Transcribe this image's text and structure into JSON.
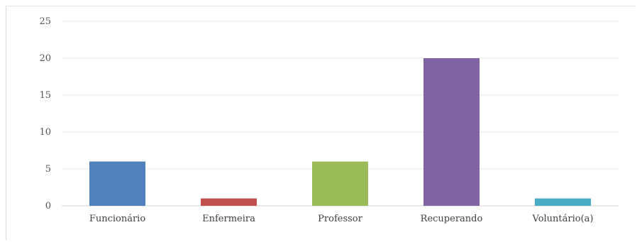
{
  "chart_data": {
    "type": "bar",
    "categories": [
      "Funcionário",
      "Enfermeira",
      "Professor",
      "Recuperando",
      "Voluntário(a)"
    ],
    "values": [
      6,
      1,
      6,
      20,
      1
    ],
    "colors": [
      "#4f81bd",
      "#c0504d",
      "#9bbb59",
      "#8064a2",
      "#4bacc6"
    ],
    "title": "",
    "xlabel": "",
    "ylabel": "",
    "ylim": [
      0,
      25
    ],
    "yticks": [
      0,
      5,
      10,
      15,
      20,
      25
    ],
    "grid": true,
    "legend": "none"
  }
}
